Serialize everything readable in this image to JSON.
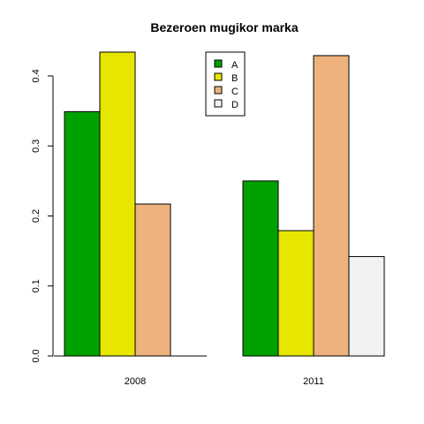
{
  "chart_data": {
    "type": "bar",
    "title": "Bezeroen mugikor marka",
    "xlabel": "",
    "ylabel": "",
    "categories": [
      "2008",
      "2011"
    ],
    "series": [
      {
        "name": "A",
        "color": "#00A000",
        "values": [
          0.349,
          0.25
        ]
      },
      {
        "name": "B",
        "color": "#E6E600",
        "values": [
          0.434,
          0.179
        ]
      },
      {
        "name": "C",
        "color": "#EDB27E",
        "values": [
          0.217,
          0.429
        ]
      },
      {
        "name": "D",
        "color": "#F2F2F2",
        "values": [
          0.0,
          0.142
        ]
      }
    ],
    "ylim": [
      0,
      0.434
    ],
    "yticks": [
      0.0,
      0.1,
      0.2,
      0.3,
      0.4
    ],
    "ytick_labels": [
      "0.0",
      "0.1",
      "0.2",
      "0.3",
      "0.4"
    ],
    "legend_position": "top-center",
    "grid": false
  }
}
